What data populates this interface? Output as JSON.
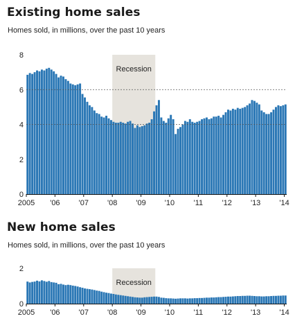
{
  "charts": [
    {
      "title": "Existing home sales",
      "subtitle": "Homes sold, in millions, over the past 10 years",
      "chart_data": {
        "type": "bar",
        "ylim": [
          0,
          8
        ],
        "yticks": [
          0,
          2,
          4,
          6,
          8
        ],
        "gridlines": [
          6,
          4
        ],
        "x_tick_labels": [
          "2005",
          "'06",
          "'07",
          "'08",
          "'09",
          "'10",
          "'11",
          "'12",
          "'13",
          "'14"
        ],
        "recession": {
          "label": "Recession",
          "start_month": 36,
          "end_month": 54
        },
        "color": "#2a77b5",
        "values": [
          6.85,
          6.95,
          6.9,
          7.0,
          7.1,
          7.05,
          7.15,
          7.1,
          7.2,
          7.25,
          7.15,
          7.05,
          6.9,
          6.7,
          6.8,
          6.75,
          6.6,
          6.5,
          6.35,
          6.3,
          6.25,
          6.3,
          6.35,
          5.75,
          5.55,
          5.3,
          5.1,
          5.0,
          4.8,
          4.65,
          4.6,
          4.45,
          4.4,
          4.5,
          4.35,
          4.25,
          4.15,
          4.1,
          4.1,
          4.15,
          4.1,
          4.05,
          4.15,
          4.2,
          4.05,
          3.8,
          3.95,
          3.85,
          3.9,
          3.95,
          4.05,
          4.1,
          4.3,
          4.75,
          5.1,
          5.4,
          4.4,
          4.2,
          4.1,
          4.35,
          4.55,
          4.3,
          3.45,
          3.75,
          3.85,
          4.0,
          4.2,
          4.15,
          4.3,
          4.15,
          4.1,
          4.15,
          4.2,
          4.3,
          4.35,
          4.4,
          4.3,
          4.35,
          4.45,
          4.45,
          4.5,
          4.4,
          4.55,
          4.7,
          4.85,
          4.8,
          4.9,
          4.85,
          4.95,
          4.9,
          4.95,
          5.0,
          5.1,
          5.2,
          5.4,
          5.35,
          5.25,
          5.15,
          4.8,
          4.7,
          4.6,
          4.6,
          4.7,
          4.85,
          5.0,
          5.1,
          5.05,
          5.1,
          5.15
        ]
      }
    },
    {
      "title": "New home sales",
      "subtitle": "Homes sold, in millions, over the past 10 years",
      "chart_data": {
        "type": "bar",
        "ylim": [
          0,
          2
        ],
        "yticks": [
          0,
          2
        ],
        "gridlines": [],
        "x_tick_labels": [
          "2005",
          "'06",
          "'07",
          "'08",
          "'09",
          "'10",
          "'11",
          "'12",
          "'13",
          "'14"
        ],
        "recession": {
          "label": "Recession",
          "start_month": 36,
          "end_month": 54
        },
        "color": "#2a77b5",
        "values": [
          1.25,
          1.2,
          1.23,
          1.25,
          1.3,
          1.26,
          1.32,
          1.28,
          1.24,
          1.28,
          1.22,
          1.2,
          1.18,
          1.1,
          1.12,
          1.08,
          1.05,
          1.07,
          1.05,
          1.02,
          1.0,
          0.97,
          0.93,
          0.9,
          0.86,
          0.84,
          0.82,
          0.8,
          0.77,
          0.74,
          0.72,
          0.68,
          0.65,
          0.62,
          0.6,
          0.57,
          0.55,
          0.52,
          0.5,
          0.48,
          0.46,
          0.44,
          0.42,
          0.4,
          0.38,
          0.36,
          0.35,
          0.34,
          0.34,
          0.36,
          0.37,
          0.38,
          0.39,
          0.4,
          0.4,
          0.38,
          0.34,
          0.33,
          0.31,
          0.3,
          0.3,
          0.29,
          0.28,
          0.29,
          0.3,
          0.3,
          0.3,
          0.29,
          0.3,
          0.3,
          0.31,
          0.31,
          0.32,
          0.32,
          0.33,
          0.34,
          0.34,
          0.35,
          0.35,
          0.36,
          0.37,
          0.37,
          0.38,
          0.39,
          0.4,
          0.4,
          0.41,
          0.42,
          0.43,
          0.43,
          0.44,
          0.44,
          0.45,
          0.45,
          0.44,
          0.43,
          0.42,
          0.42,
          0.41,
          0.41,
          0.42,
          0.42,
          0.43,
          0.44,
          0.44,
          0.45,
          0.45,
          0.46,
          0.46
        ]
      }
    }
  ]
}
